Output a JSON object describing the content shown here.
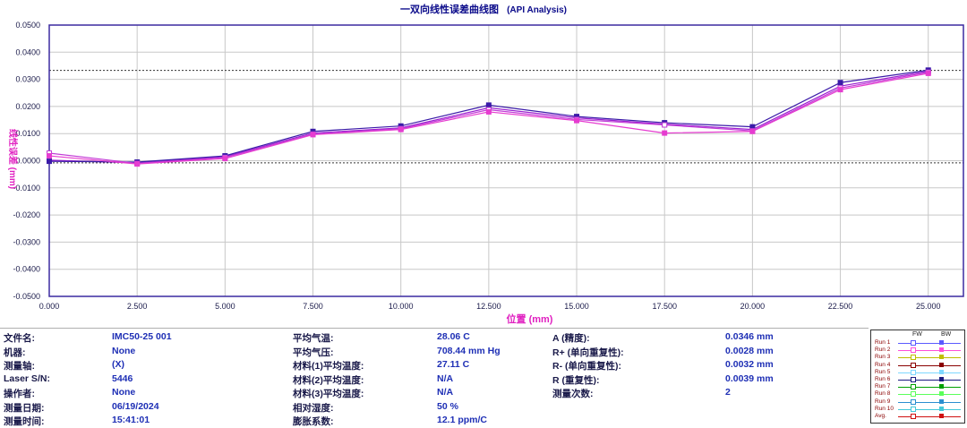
{
  "window": {
    "title": "一双向线性误差曲线图",
    "subtitle": "(API Analysis)"
  },
  "chart_data": {
    "type": "line",
    "title": "一双向线性误差曲线图",
    "xlabel": "位置 (mm)",
    "ylabel": "线性误差 (mm)",
    "xlim": [
      0,
      26.0
    ],
    "ylim": [
      -0.05,
      0.05
    ],
    "x_ticks": [
      "0.000",
      "2.500",
      "5.000",
      "7.500",
      "10.000",
      "12.500",
      "15.000",
      "17.500",
      "20.000",
      "22.500",
      "25.000"
    ],
    "y_ticks": [
      "0.0500",
      "0.0400",
      "0.0300",
      "0.0200",
      "0.0100",
      "0.0000",
      "-0.0100",
      "-0.0200",
      "-0.0300",
      "-0.0400",
      "-0.0500"
    ],
    "reference_lines": [
      0.0333,
      -0.0008
    ],
    "x": [
      0,
      2.5,
      5.0,
      7.5,
      10.0,
      12.5,
      15.0,
      17.5,
      20.0,
      22.5,
      25.0
    ],
    "series": [
      {
        "name": "Run 1",
        "direction": "FW",
        "color": "#9b1fd0",
        "values": [
          0.0002,
          -0.0008,
          0.0015,
          0.0102,
          0.0121,
          0.0195,
          0.0158,
          0.0135,
          0.0115,
          0.0275,
          0.033
        ]
      },
      {
        "name": "Run 1",
        "direction": "BW",
        "color": "#3b1ba8",
        "values": [
          -0.0002,
          -0.0005,
          0.0018,
          0.0108,
          0.0128,
          0.0205,
          0.0163,
          0.014,
          0.0125,
          0.0288,
          0.0334
        ]
      },
      {
        "name": "Run 2",
        "direction": "FW",
        "color": "#c23bd6",
        "values": [
          0.0028,
          -0.001,
          0.0012,
          0.0098,
          0.0118,
          0.0188,
          0.0152,
          0.0132,
          0.011,
          0.0268,
          0.0326
        ]
      },
      {
        "name": "Run 2",
        "direction": "BW",
        "color": "#e63cd0",
        "values": [
          0.0018,
          -0.0012,
          0.0008,
          0.0096,
          0.0115,
          0.018,
          0.0148,
          0.0102,
          0.0108,
          0.0262,
          0.0322
        ]
      }
    ]
  },
  "info": {
    "col1": [
      {
        "label": "文件名:",
        "value": "IMC50-25 001"
      },
      {
        "label": "机器:",
        "value": "None"
      },
      {
        "label": "测量轴:",
        "value": "(X)"
      },
      {
        "label": "Laser S/N:",
        "value": "5446"
      },
      {
        "label": "操作者:",
        "value": "None"
      },
      {
        "label": "测量日期:",
        "value": "06/19/2024"
      },
      {
        "label": "测量时间:",
        "value": "15:41:01"
      }
    ],
    "col2": [
      {
        "label": "平均气温:",
        "value": "28.06 C"
      },
      {
        "label": "平均气压:",
        "value": "708.44 mm Hg"
      },
      {
        "label": "材料(1)平均温度:",
        "value": "27.11 C"
      },
      {
        "label": "材料(2)平均温度:",
        "value": "N/A"
      },
      {
        "label": "材料(3)平均温度:",
        "value": "N/A"
      },
      {
        "label": "相对湿度:",
        "value": "50 %"
      },
      {
        "label": "膨胀系数:",
        "value": "12.1 ppm/C"
      }
    ],
    "col3": [
      {
        "label": "A (精度):",
        "value": "0.0346 mm"
      },
      {
        "label": "R+ (单向重复性):",
        "value": "0.0028 mm"
      },
      {
        "label": "R- (单向重复性):",
        "value": "0.0032 mm"
      },
      {
        "label": "R (重复性):",
        "value": "0.0039 mm"
      },
      {
        "label": "测量次数:",
        "value": "2"
      }
    ]
  },
  "legend": {
    "fw": "FW",
    "bw": "BW",
    "runs": [
      {
        "name": "Run 1",
        "color": "#5a5aff"
      },
      {
        "name": "Run 2",
        "color": "#ff4fd8"
      },
      {
        "name": "Run 3",
        "color": "#bfbf00"
      },
      {
        "name": "Run 4",
        "color": "#8a0000"
      },
      {
        "name": "Run 5",
        "color": "#7fd8ff"
      },
      {
        "name": "Run 6",
        "color": "#1a1a80"
      },
      {
        "name": "Run 7",
        "color": "#00a000"
      },
      {
        "name": "Run 8",
        "color": "#5aff5a"
      },
      {
        "name": "Run 9",
        "color": "#2b8fd0"
      },
      {
        "name": "Run 10",
        "color": "#44c8d8"
      },
      {
        "name": "Avg.",
        "color": "#d01010"
      }
    ]
  }
}
